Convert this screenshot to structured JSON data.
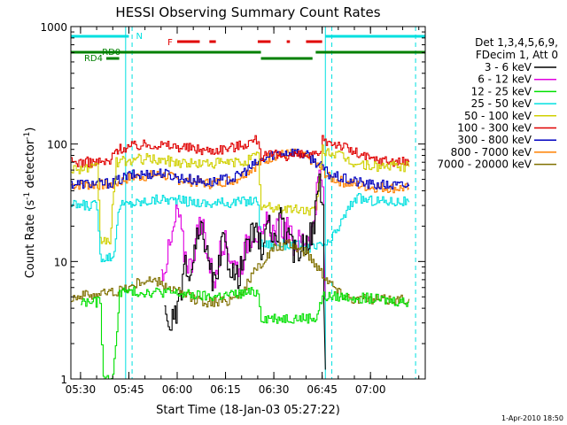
{
  "chart_data": {
    "type": "line",
    "title": "HESSI Observing Summary Count Rates",
    "xlabel": "Start Time (18-Jan-03 05:27:22)",
    "ylabel_main": "Count Rate (s",
    "ylabel_sup1": "-1",
    "ylabel_mid": " detector",
    "ylabel_sup2": "-1",
    "ylabel_end": ")",
    "y_scale": "log",
    "ylim": [
      1,
      1000
    ],
    "xlim": [
      "05:27",
      "07:17"
    ],
    "x_ticks": [
      "05:30",
      "05:45",
      "06:00",
      "06:15",
      "06:30",
      "06:45",
      "07:00"
    ],
    "y_ticks": [
      "1",
      "10",
      "100",
      "1000"
    ],
    "footer_date": "1-Apr-2010 18:50",
    "legend": {
      "header1": "Det 1,3,4,5,6,9,",
      "header2": "FDecim 1, Att 0",
      "entries": [
        {
          "label": "3 - 6 keV",
          "color": "#000000"
        },
        {
          "label": "6 - 12 keV",
          "color": "#e000e0"
        },
        {
          "label": "12 - 25 keV",
          "color": "#00e000"
        },
        {
          "label": "25 - 50 keV",
          "color": "#00e0e0"
        },
        {
          "label": "50 - 100 keV",
          "color": "#d0d000"
        },
        {
          "label": "100 - 300 keV",
          "color": "#e00000"
        },
        {
          "label": "300 - 800 keV",
          "color": "#0000c0"
        },
        {
          "label": "800 - 7000 keV",
          "color": "#ff8000"
        },
        {
          "label": "7000 - 20000 keV",
          "color": "#807000"
        }
      ]
    },
    "flags": [
      {
        "label": "N",
        "color": "#00e0e0",
        "segments": [
          [
            "05:27",
            "05:45"
          ],
          [
            "06:46",
            "07:17"
          ]
        ]
      },
      {
        "label": "F",
        "color": "#e00000",
        "segments": [
          [
            "06:00",
            "06:07"
          ],
          [
            "06:10",
            "06:12"
          ],
          [
            "06:25",
            "06:29"
          ],
          [
            "06:34",
            "06:35"
          ],
          [
            "06:40",
            "06:45"
          ]
        ]
      },
      {
        "label": "RD0",
        "color": "#008000",
        "segments": [
          [
            "05:27",
            "06:26"
          ],
          [
            "06:43",
            "07:17"
          ]
        ]
      },
      {
        "label": "RD4",
        "color": "#008000",
        "segments": [
          [
            "05:38",
            "05:42"
          ],
          [
            "06:26",
            "06:42"
          ]
        ]
      }
    ],
    "vlines": [
      {
        "time": "05:44",
        "color": "#00e0e0",
        "style": "solid"
      },
      {
        "time": "05:46",
        "color": "#00e0e0",
        "style": "dashed"
      },
      {
        "time": "06:46",
        "color": "#00e0e0",
        "style": "solid"
      },
      {
        "time": "06:48",
        "color": "#00e0e0",
        "style": "dashed"
      },
      {
        "time": "07:14",
        "color": "#00e0e0",
        "style": "dashed"
      }
    ],
    "series": [
      {
        "name": "800 - 7000 keV",
        "color": "#ff8000",
        "x": [
          "05:27",
          "05:36",
          "05:40",
          "05:45",
          "05:55",
          "06:00",
          "06:10",
          "06:18",
          "06:24",
          "06:30",
          "06:36",
          "06:41",
          "06:45",
          "06:47",
          "06:52",
          "07:00",
          "07:12"
        ],
        "y": [
          45,
          45,
          45,
          52,
          55,
          50,
          46,
          50,
          65,
          80,
          83,
          75,
          60,
          52,
          47,
          43,
          42
        ]
      },
      {
        "name": "300 - 800 keV",
        "color": "#0000c0",
        "x": [
          "05:27",
          "05:36",
          "05:40",
          "05:45",
          "05:55",
          "06:00",
          "06:10",
          "06:18",
          "06:24",
          "06:30",
          "06:36",
          "06:41",
          "06:45",
          "06:47",
          "06:52",
          "07:00",
          "07:12"
        ],
        "y": [
          46,
          46,
          47,
          54,
          57,
          52,
          47,
          52,
          67,
          83,
          86,
          78,
          63,
          55,
          50,
          45,
          44
        ]
      },
      {
        "name": "100 - 300 keV",
        "color": "#e00000",
        "x": [
          "05:27",
          "05:39",
          "05:41",
          "05:45",
          "05:52",
          "06:00",
          "06:10",
          "06:18",
          "06:25",
          "06:26",
          "06:30",
          "06:38",
          "06:44",
          "06:45",
          "06:50",
          "06:55",
          "07:00",
          "07:12"
        ],
        "y": [
          70,
          70,
          90,
          95,
          100,
          95,
          88,
          95,
          110,
          78,
          80,
          80,
          78,
          108,
          100,
          85,
          74,
          70
        ]
      },
      {
        "name": "50 - 100 keV",
        "color": "#d0d000",
        "x": [
          "05:27",
          "05:35",
          "05:36",
          "05:39",
          "05:41",
          "05:50",
          "06:05",
          "06:20",
          "06:25",
          "06:26",
          "06:35",
          "06:43",
          "06:45",
          "06:50",
          "06:55",
          "07:00",
          "07:12"
        ],
        "y": [
          62,
          62,
          15,
          15,
          70,
          75,
          68,
          70,
          80,
          29,
          28,
          27,
          90,
          80,
          68,
          65,
          64
        ]
      },
      {
        "name": "25 - 50 keV",
        "color": "#00e0e0",
        "x": [
          "05:27",
          "05:35",
          "05:36",
          "05:40",
          "05:42",
          "05:55",
          "06:10",
          "06:25",
          "06:26",
          "06:35",
          "06:43",
          "06:45",
          "06:47",
          "06:55",
          "07:00",
          "07:12"
        ],
        "y": [
          30,
          30,
          11,
          11,
          30,
          34,
          31,
          33,
          14,
          14,
          13,
          14,
          14,
          35,
          33,
          32
        ]
      },
      {
        "name": "6 - 12 keV",
        "color": "#e000e0",
        "x": [
          "05:55",
          "05:58",
          "06:00",
          "06:02",
          "06:04",
          "06:06",
          "06:08",
          "06:10",
          "06:12",
          "06:14",
          "06:16",
          "06:18",
          "06:20",
          "06:22",
          "06:24",
          "06:26",
          "06:28",
          "06:30",
          "06:32",
          "06:34",
          "06:36",
          "06:38",
          "06:40",
          "06:42",
          "06:44",
          "06:45",
          "06:46"
        ],
        "y": [
          8,
          14,
          28,
          12,
          9,
          17,
          20,
          9,
          7,
          16,
          12,
          9,
          10,
          16,
          19,
          14,
          22,
          17,
          20,
          18,
          14,
          15,
          16,
          19,
          55,
          40,
          5
        ]
      },
      {
        "name": "3 - 6 keV",
        "color": "#000000",
        "x": [
          "05:56",
          "05:58",
          "06:00",
          "06:02",
          "06:04",
          "06:06",
          "06:08",
          "06:10",
          "06:12",
          "06:14",
          "06:16",
          "06:18",
          "06:20",
          "06:22",
          "06:24",
          "06:26",
          "06:28",
          "06:30",
          "06:32",
          "06:34",
          "06:36",
          "06:38",
          "06:40",
          "06:42",
          "06:44",
          "06:45",
          "06:46"
        ],
        "y": [
          3.5,
          3,
          3.5,
          9,
          7,
          15,
          18,
          8,
          6,
          15,
          10,
          7,
          9,
          15,
          18,
          13,
          20,
          15,
          22,
          16,
          12,
          13,
          15,
          18,
          50,
          30,
          1.2
        ]
      },
      {
        "name": "7000 - 20000 keV",
        "color": "#807000",
        "x": [
          "05:27",
          "05:40",
          "05:45",
          "05:50",
          "05:55",
          "06:00",
          "06:05",
          "06:10",
          "06:15",
          "06:20",
          "06:25",
          "06:30",
          "06:35",
          "06:40",
          "06:45",
          "06:50",
          "06:55",
          "07:00",
          "07:12"
        ],
        "y": [
          5,
          5.5,
          6,
          7,
          6.5,
          5.5,
          4.8,
          4.5,
          4.6,
          5.5,
          9,
          13,
          14,
          12,
          8,
          5.5,
          4.8,
          4.7,
          4.8
        ]
      },
      {
        "name": "12 - 25 keV",
        "color": "#00e000",
        "x": [
          "05:30",
          "05:36",
          "05:37",
          "05:40",
          "05:42",
          "05:55",
          "06:10",
          "06:25",
          "06:26",
          "06:35",
          "06:43",
          "06:45",
          "06:50",
          "06:55",
          "07:00",
          "07:12"
        ],
        "y": [
          4.5,
          4.5,
          1,
          1,
          5.5,
          5.5,
          5,
          5.5,
          3.3,
          3.3,
          3.3,
          5,
          5,
          5,
          4.8,
          4.5
        ]
      }
    ]
  }
}
